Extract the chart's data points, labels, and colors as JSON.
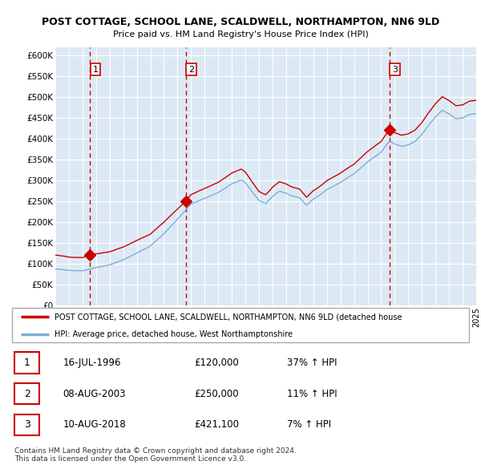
{
  "title": "POST COTTAGE, SCHOOL LANE, SCALDWELL, NORTHAMPTON, NN6 9LD",
  "subtitle": "Price paid vs. HM Land Registry's House Price Index (HPI)",
  "ylim": [
    0,
    620000
  ],
  "yticks": [
    0,
    50000,
    100000,
    150000,
    200000,
    250000,
    300000,
    350000,
    400000,
    450000,
    500000,
    550000,
    600000
  ],
  "ytick_labels": [
    "£0",
    "£50K",
    "£100K",
    "£150K",
    "£200K",
    "£250K",
    "£300K",
    "£350K",
    "£400K",
    "£450K",
    "£500K",
    "£550K",
    "£600K"
  ],
  "plot_bg_color": "#dce9f5",
  "grid_color": "#ffffff",
  "sale_color": "#cc0000",
  "hpi_color": "#7bafd4",
  "dashed_line_color": "#cc0000",
  "sales": [
    {
      "date_num": 1996.54,
      "price": 120000,
      "label": "1"
    },
    {
      "date_num": 2003.6,
      "price": 250000,
      "label": "2"
    },
    {
      "date_num": 2018.6,
      "price": 421100,
      "label": "3"
    }
  ],
  "legend_sale_label": "POST COTTAGE, SCHOOL LANE, SCALDWELL, NORTHAMPTON, NN6 9LD (detached house",
  "legend_hpi_label": "HPI: Average price, detached house, West Northamptonshire",
  "table_rows": [
    {
      "num": "1",
      "date": "16-JUL-1996",
      "price": "£120,000",
      "hpi": "37% ↑ HPI"
    },
    {
      "num": "2",
      "date": "08-AUG-2003",
      "price": "£250,000",
      "hpi": "11% ↑ HPI"
    },
    {
      "num": "3",
      "date": "10-AUG-2018",
      "price": "£421,100",
      "hpi": "7% ↑ HPI"
    }
  ],
  "footer": "Contains HM Land Registry data © Crown copyright and database right 2024.\nThis data is licensed under the Open Government Licence v3.0.",
  "xmin": 1994,
  "xmax": 2025
}
